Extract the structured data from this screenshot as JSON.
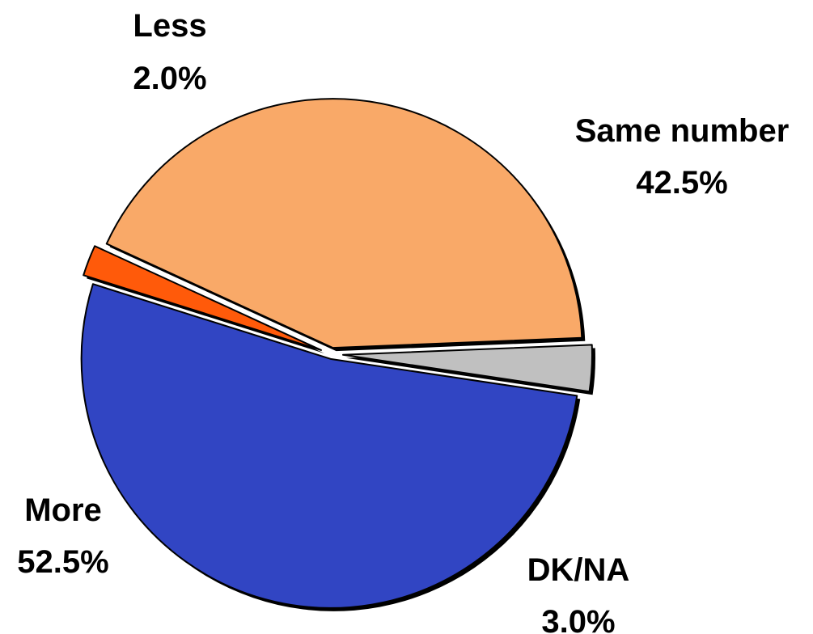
{
  "chart_data": {
    "type": "pie",
    "title": "",
    "slices": [
      {
        "name": "Less",
        "value": 2.0,
        "label": "2.0%",
        "color": "#ff5a0a"
      },
      {
        "name": "Same number",
        "value": 42.5,
        "label": "42.5%",
        "color": "#f9a968"
      },
      {
        "name": "DK/NA",
        "value": 3.0,
        "label": "3.0%",
        "color": "#c0c0c0"
      },
      {
        "name": "More",
        "value": 52.5,
        "label": "52.5%",
        "color": "#3145c3"
      }
    ],
    "exploded": true,
    "legend": "none"
  }
}
